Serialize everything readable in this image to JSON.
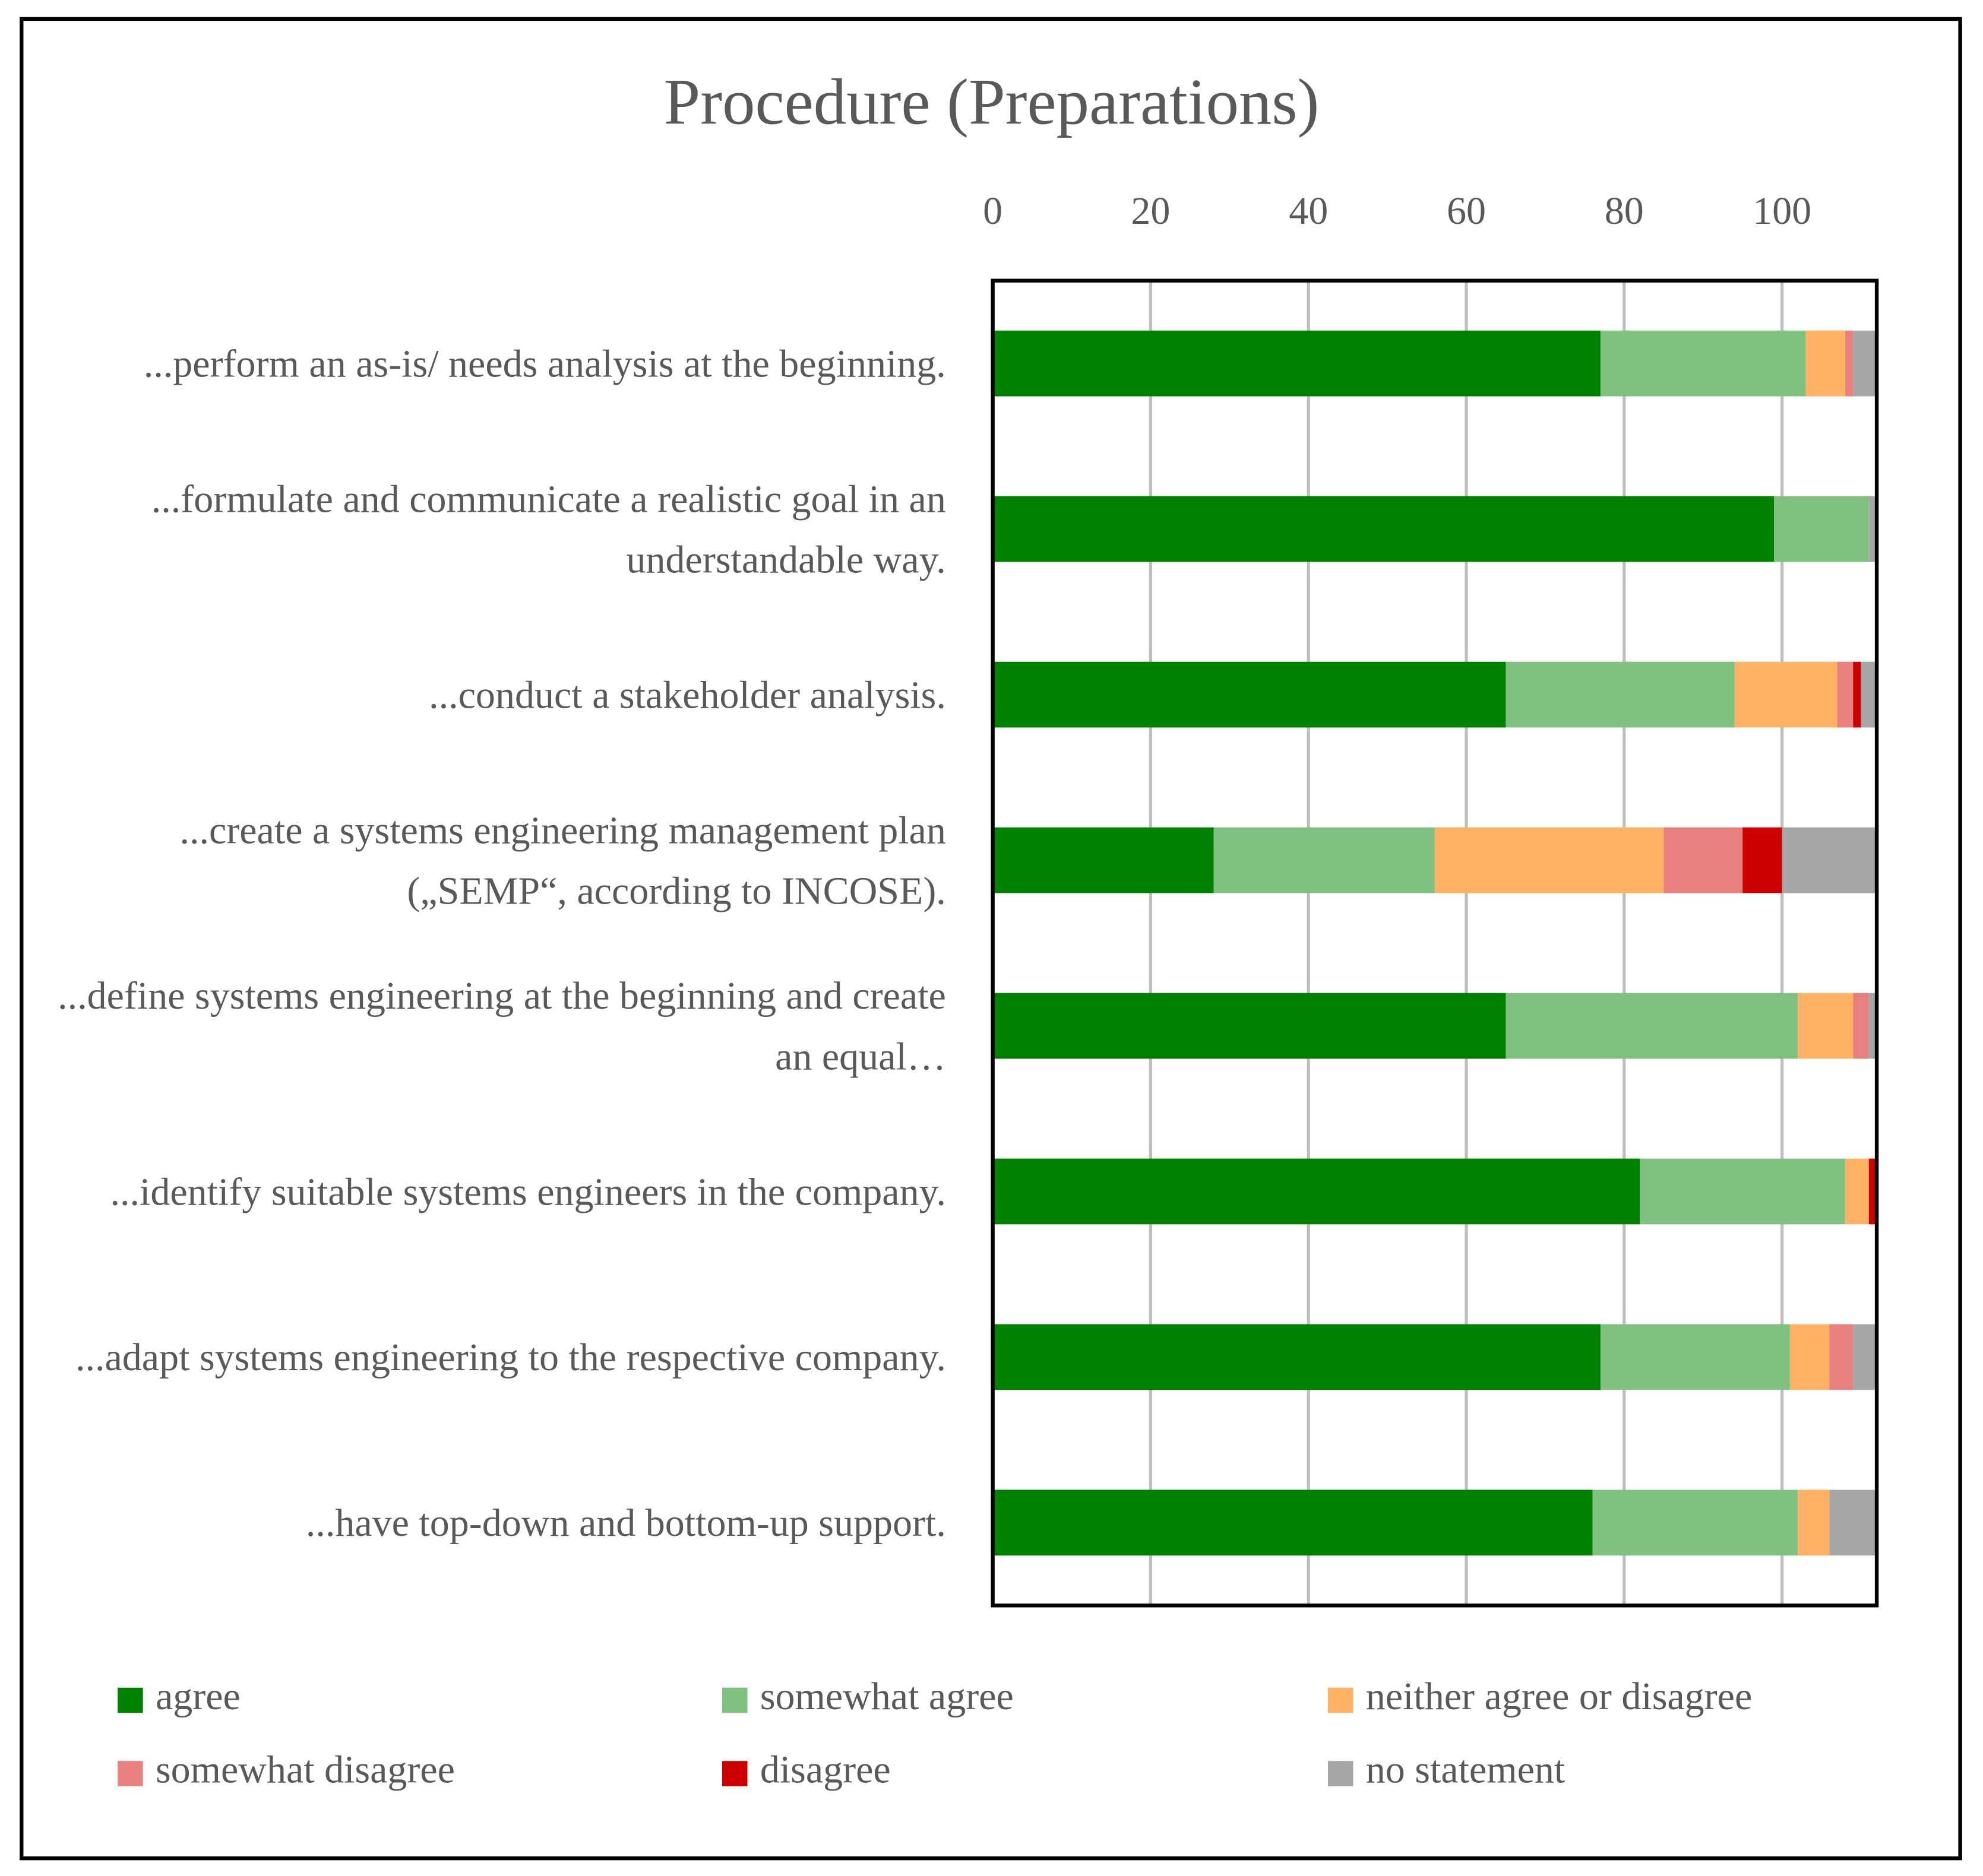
{
  "chart_data": {
    "type": "stacked-bar-horizontal",
    "title": "Procedure (Preparations)",
    "categories": [
      "...perform an as-is/ needs analysis at the beginning.",
      "...formulate and communicate a realistic goal in an understandable way.",
      "...conduct a stakeholder analysis.",
      "...create a systems engineering management plan („SEMP“, according to INCOSE).",
      "...define systems engineering at the beginning and create an equal…",
      "...identify suitable systems engineers in the company.",
      "...adapt systems engineering to the respective company.",
      "...have top-down and bottom-up support."
    ],
    "series": [
      {
        "name": "agree",
        "color": "#008000",
        "values": [
          77,
          99,
          65,
          28,
          65,
          82,
          77,
          76
        ]
      },
      {
        "name": "somewhat agree",
        "color": "#80c080",
        "values": [
          26,
          12,
          29,
          28,
          37,
          26,
          24,
          26
        ]
      },
      {
        "name": "neither agree or disagree",
        "color": "#ffb266",
        "values": [
          5,
          0,
          13,
          29,
          7,
          3,
          5,
          4
        ]
      },
      {
        "name": "somewhat disagree",
        "color": "#e88080",
        "values": [
          1,
          0,
          2,
          10,
          2,
          0,
          3,
          0
        ]
      },
      {
        "name": "disagree",
        "color": "#cc0000",
        "values": [
          0,
          0,
          1,
          5,
          0,
          1,
          0,
          0
        ]
      },
      {
        "name": "no statement",
        "color": "#a6a6a6",
        "values": [
          3,
          1,
          2,
          12,
          1,
          0,
          3,
          6
        ]
      }
    ],
    "xlim": [
      0,
      112
    ],
    "xticks": [
      0,
      20,
      40,
      60,
      80,
      100
    ],
    "grid": true,
    "legend": "bottom"
  }
}
